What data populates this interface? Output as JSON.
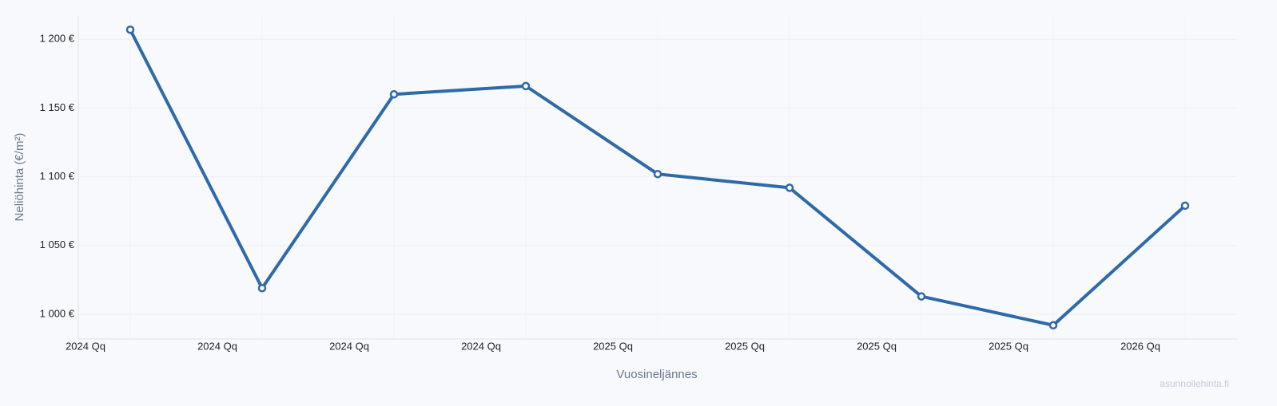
{
  "chart_data": {
    "type": "line",
    "y_label": "Neliöhinta (€/m²)",
    "x_label": "Vuosineljännes",
    "watermark": "asunnollehinta.fi",
    "categories": [
      "2024 Qq",
      "2024 Qq",
      "2024 Qq",
      "2024 Qq",
      "2025 Qq",
      "2025 Qq",
      "2025 Qq",
      "2025 Qq",
      "2026 Qq"
    ],
    "values": [
      1207,
      1019,
      1160,
      1166,
      1102,
      1092,
      1013,
      992,
      1079
    ],
    "color": "#2f6aa8",
    "ylim": [
      982,
      1217
    ],
    "yticks": [
      {
        "value": 1000,
        "label": "1 000 €"
      },
      {
        "value": 1050,
        "label": "1 050 €"
      },
      {
        "value": 1100,
        "label": "1 100 €"
      },
      {
        "value": 1150,
        "label": "1 150 €"
      },
      {
        "value": 1200,
        "label": "1 200 €"
      }
    ],
    "grid": true
  }
}
